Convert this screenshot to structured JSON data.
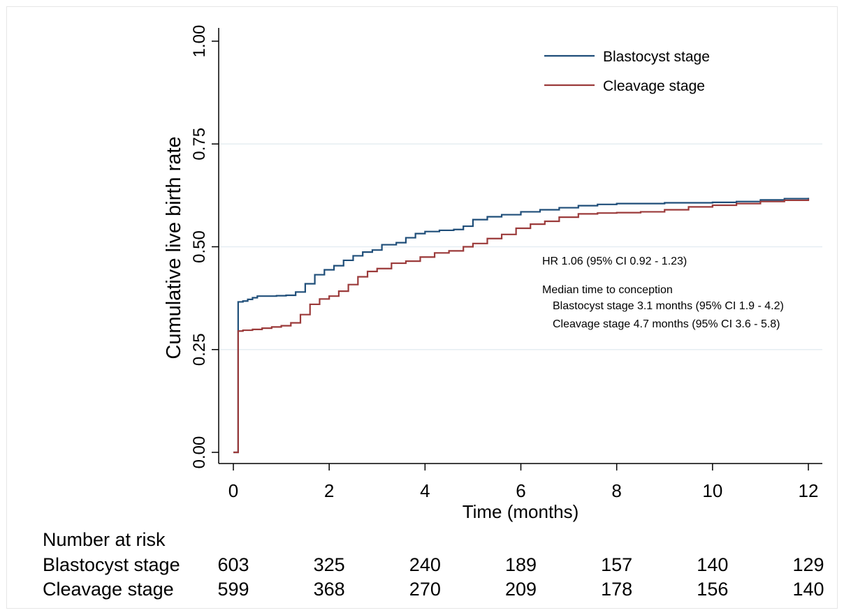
{
  "chart_data": {
    "type": "line",
    "title": "",
    "xlabel": "Time (months)",
    "ylabel": "Cumulative live birth rate",
    "xlim": [
      0,
      12
    ],
    "ylim": [
      0,
      1
    ],
    "x_ticks": [
      "0",
      "2",
      "4",
      "6",
      "8",
      "10",
      "12"
    ],
    "y_ticks": [
      "0.00",
      "0.25",
      "0.50",
      "0.75",
      "1.00"
    ],
    "grid": "horizontal",
    "legend_position": "top-right",
    "colors": {
      "blastocyst": "#1f4e79",
      "cleavage": "#9b3a3a",
      "grid": "#e6eef2"
    },
    "series": [
      {
        "name": "Blastocyst stage",
        "x": [
          0,
          0.1,
          0.2,
          0.3,
          0.4,
          0.5,
          0.7,
          0.9,
          1.1,
          1.3,
          1.5,
          1.7,
          1.9,
          2.1,
          2.3,
          2.5,
          2.7,
          2.9,
          3.1,
          3.4,
          3.6,
          3.8,
          4.0,
          4.3,
          4.6,
          4.8,
          5.0,
          5.3,
          5.6,
          6.0,
          6.4,
          6.8,
          7.2,
          7.6,
          8.0,
          9.0,
          10.0,
          10.5,
          11.0,
          11.5,
          12.0
        ],
        "y": [
          0,
          0.366,
          0.368,
          0.372,
          0.376,
          0.38,
          0.38,
          0.381,
          0.382,
          0.39,
          0.41,
          0.432,
          0.444,
          0.454,
          0.467,
          0.478,
          0.487,
          0.492,
          0.505,
          0.51,
          0.522,
          0.532,
          0.537,
          0.54,
          0.542,
          0.55,
          0.566,
          0.573,
          0.578,
          0.585,
          0.59,
          0.595,
          0.6,
          0.603,
          0.605,
          0.607,
          0.608,
          0.61,
          0.614,
          0.617,
          0.619
        ]
      },
      {
        "name": "Cleavage stage",
        "x": [
          0,
          0.1,
          0.2,
          0.4,
          0.6,
          0.8,
          1.0,
          1.2,
          1.4,
          1.6,
          1.8,
          2.0,
          2.2,
          2.4,
          2.6,
          2.8,
          3.0,
          3.3,
          3.6,
          3.9,
          4.2,
          4.5,
          4.8,
          5.0,
          5.3,
          5.6,
          5.9,
          6.2,
          6.5,
          6.8,
          7.2,
          7.6,
          8.0,
          8.5,
          9.0,
          9.5,
          10.0,
          10.5,
          11.0,
          11.5,
          12.0
        ],
        "y": [
          0,
          0.295,
          0.297,
          0.299,
          0.302,
          0.305,
          0.308,
          0.315,
          0.335,
          0.36,
          0.373,
          0.38,
          0.392,
          0.408,
          0.427,
          0.44,
          0.447,
          0.46,
          0.465,
          0.475,
          0.485,
          0.49,
          0.5,
          0.508,
          0.52,
          0.53,
          0.545,
          0.555,
          0.562,
          0.572,
          0.58,
          0.582,
          0.583,
          0.585,
          0.59,
          0.597,
          0.601,
          0.605,
          0.61,
          0.613,
          0.616
        ]
      }
    ],
    "annotations": {
      "hr": "HR 1.06 (95% CI 0.92 - 1.23)",
      "median_title": "Median time to conception",
      "median_blastocyst": "Blastocyst stage 3.1 months (95% CI 1.9 - 4.2)",
      "median_cleavage": "Cleavage stage  4.7 months (95% CI 3.6 - 5.8)"
    },
    "risk_table": {
      "title": "Number at risk",
      "rows": [
        {
          "label": "Blastocyst stage",
          "values": [
            "603",
            "325",
            "240",
            "189",
            "157",
            "140",
            "129"
          ]
        },
        {
          "label": "Cleavage stage",
          "values": [
            "599",
            "368",
            "270",
            "209",
            "178",
            "156",
            "140"
          ]
        }
      ]
    }
  }
}
